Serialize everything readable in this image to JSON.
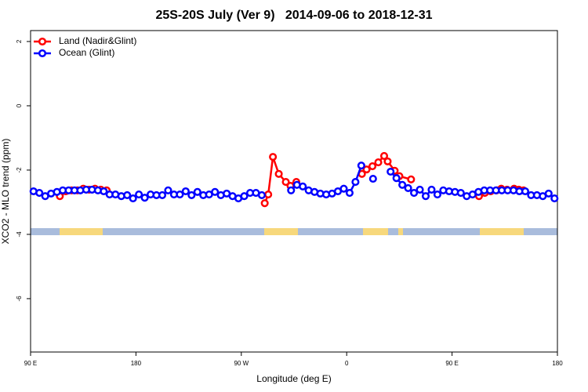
{
  "chart_data": {
    "type": "line",
    "title": "25S-20S July (Ver 9)   2014-09-06 to 2018-12-31",
    "xlabel": "Longitude (deg E)",
    "ylabel": "XCO2 - MLO trend (ppm)",
    "xlim": [
      90,
      540
    ],
    "ylim": [
      -7.66,
      2.34
    ],
    "xticks": [
      {
        "value": 90,
        "label": "90 E"
      },
      180,
      {
        "value": 270,
        "label": "90 W"
      },
      {
        "value": 360,
        "label": "0"
      },
      {
        "value": 450,
        "label": "90 E"
      },
      {
        "value": 540,
        "label": "180"
      }
    ],
    "yticks": [
      2,
      0,
      -2,
      -4,
      -6
    ],
    "legend": "topleft",
    "series": [
      {
        "name": "Land (Nadir&Glint)",
        "color": "#ff0000",
        "x": [
          115,
          120,
          125,
          130,
          135,
          140,
          145,
          150,
          155,
          null,
          290,
          293,
          297,
          302,
          308,
          312,
          317,
          null,
          373,
          377,
          382,
          387,
          392,
          395,
          401,
          405,
          415,
          null,
          473,
          478,
          483,
          488,
          492,
          497,
          503,
          507,
          511
        ],
        "values": [
          -2.81,
          -2.66,
          -2.63,
          -2.63,
          -2.58,
          -2.61,
          -2.58,
          -2.61,
          -2.63,
          null,
          -3.03,
          -2.76,
          -1.59,
          -2.12,
          -2.37,
          -2.49,
          -2.37,
          null,
          -2.12,
          -1.98,
          -1.88,
          -1.76,
          -1.56,
          -1.73,
          -2.02,
          -2.19,
          -2.29,
          null,
          -2.81,
          -2.71,
          -2.66,
          -2.63,
          -2.58,
          -2.61,
          -2.58,
          -2.61,
          -2.63
        ]
      },
      {
        "name": "Ocean (Glint)",
        "color": "#0000ff",
        "x": [
          92.5,
          97.5,
          102.5,
          107.5,
          112.5,
          117.5,
          122.5,
          127.5,
          132.5,
          137.5,
          142.5,
          147.5,
          152.5,
          157.5,
          162.5,
          167.5,
          172.5,
          177.5,
          182.5,
          187.5,
          192.5,
          197.5,
          202.5,
          207.5,
          212.5,
          217.5,
          222.5,
          227.5,
          232.5,
          237.5,
          242.5,
          247.5,
          252.5,
          257.5,
          262.5,
          267.5,
          272.5,
          277.5,
          282.5,
          287.5,
          292.5,
          297.5,
          302.5,
          307.5,
          312.5,
          317.5,
          322.5,
          327.5,
          332.5,
          337.5,
          342.5,
          347.5,
          352.5,
          357.5,
          362.5,
          367.5,
          372.5,
          377.5,
          382.5,
          387.5,
          392.5,
          397.5,
          402.5,
          407.5,
          412.5,
          417.5,
          422.5,
          427.5,
          432.5,
          437.5,
          442.5,
          447.5,
          452.5,
          457.5,
          462.5,
          467.5,
          472.5,
          477.5,
          482.5,
          487.5,
          492.5,
          497.5,
          502.5,
          507.5,
          512.5,
          517.5,
          522.5,
          527.5,
          532.5,
          537.5
        ],
        "values": [
          -2.66,
          -2.71,
          -2.81,
          -2.73,
          -2.68,
          -2.63,
          -2.63,
          -2.63,
          -2.63,
          -2.61,
          -2.61,
          -2.63,
          -2.66,
          -2.76,
          -2.76,
          -2.81,
          -2.78,
          -2.88,
          -2.76,
          -2.86,
          -2.76,
          -2.78,
          -2.78,
          -2.63,
          -2.76,
          -2.76,
          -2.66,
          -2.78,
          -2.68,
          -2.78,
          -2.76,
          -2.68,
          -2.78,
          -2.73,
          -2.81,
          -2.88,
          -2.81,
          -2.71,
          -2.71,
          -2.78,
          null,
          null,
          null,
          null,
          -2.63,
          -2.46,
          -2.51,
          -2.63,
          -2.68,
          -2.73,
          -2.76,
          -2.73,
          -2.66,
          -2.58,
          -2.71,
          -2.37,
          -1.86,
          null,
          -2.27,
          null,
          null,
          -2.05,
          -2.25,
          -2.46,
          -2.56,
          -2.71,
          -2.61,
          -2.81,
          -2.61,
          -2.76,
          -2.63,
          -2.66,
          -2.68,
          -2.71,
          -2.81,
          -2.76,
          -2.68,
          -2.63,
          -2.63,
          -2.63,
          -2.63,
          -2.63,
          -2.63,
          -2.66,
          -2.66,
          -2.78,
          -2.78,
          -2.81,
          -2.73,
          -2.88
        ]
      }
    ]
  }
}
